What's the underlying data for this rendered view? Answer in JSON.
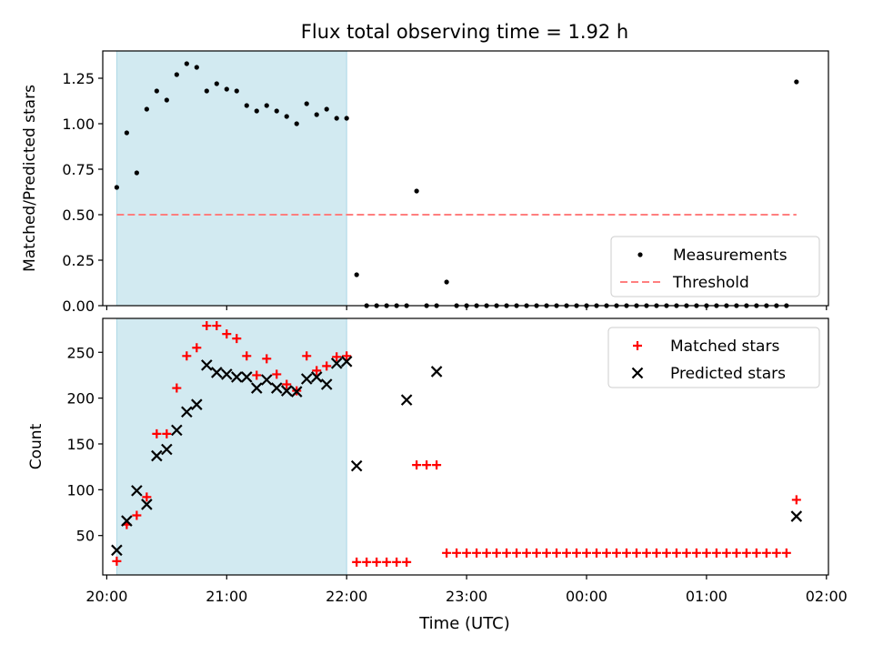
{
  "title": "Flux total observing time = 1.92 h",
  "xlabel": "Time (UTC)",
  "x_ticks": [
    "20:00",
    "21:00",
    "22:00",
    "23:00",
    "00:00",
    "01:00",
    "02:00"
  ],
  "colors": {
    "shade": "#add8e6",
    "threshold": "#ff7f7f",
    "matched": "#ff0000",
    "predicted": "#000000",
    "measurements": "#000000"
  },
  "chart_data": [
    {
      "type": "scatter",
      "ylabel": "Matched/Predicted stars",
      "xlim": [
        "19:58",
        "02:01"
      ],
      "ylim": [
        0,
        1.4
      ],
      "y_ticks": [
        "0.00",
        "0.25",
        "0.50",
        "0.75",
        "1.00",
        "1.25"
      ],
      "shaded_interval": [
        "20:05",
        "22:00"
      ],
      "legend": {
        "position": "lower-right",
        "entries": [
          "Measurements",
          "Threshold"
        ]
      },
      "series": [
        {
          "name": "Measurements",
          "marker": "dot",
          "x": [
            "20:05",
            "20:10",
            "20:15",
            "20:20",
            "20:25",
            "20:30",
            "20:35",
            "20:40",
            "20:45",
            "20:50",
            "20:55",
            "21:00",
            "21:05",
            "21:10",
            "21:15",
            "21:20",
            "21:25",
            "21:30",
            "21:35",
            "21:40",
            "21:45",
            "21:50",
            "21:55",
            "22:00",
            "22:05",
            "22:10",
            "22:15",
            "22:20",
            "22:25",
            "22:30",
            "22:35",
            "22:40",
            "22:45",
            "22:50",
            "22:55",
            "23:00",
            "23:05",
            "23:10",
            "23:15",
            "23:20",
            "23:25",
            "23:30",
            "23:35",
            "23:40",
            "23:45",
            "23:50",
            "23:55",
            "00:00",
            "00:05",
            "00:10",
            "00:15",
            "00:20",
            "00:25",
            "00:30",
            "00:35",
            "00:40",
            "00:45",
            "00:50",
            "00:55",
            "01:00",
            "01:05",
            "01:10",
            "01:15",
            "01:20",
            "01:25",
            "01:30",
            "01:35",
            "01:40",
            "01:45"
          ],
          "y": [
            0.65,
            0.95,
            0.73,
            1.08,
            1.18,
            1.13,
            1.27,
            1.33,
            1.31,
            1.18,
            1.22,
            1.19,
            1.18,
            1.1,
            1.07,
            1.1,
            1.07,
            1.04,
            1.0,
            1.11,
            1.05,
            1.08,
            1.03,
            1.03,
            0.17,
            0,
            0,
            0,
            0,
            0,
            0.63,
            0,
            0,
            0.13,
            0,
            0,
            0,
            0,
            0,
            0,
            0,
            0,
            0,
            0,
            0,
            0,
            0,
            0,
            0,
            0,
            0,
            0,
            0,
            0,
            0,
            0,
            0,
            0,
            0,
            0,
            0,
            0,
            0,
            0,
            0,
            0,
            0,
            0,
            1.23
          ]
        },
        {
          "name": "Threshold",
          "style": "dashed",
          "x": [
            "20:05",
            "01:45"
          ],
          "y": [
            0.5,
            0.5
          ]
        }
      ]
    },
    {
      "type": "scatter",
      "ylabel": "Count",
      "xlim": [
        "19:58",
        "02:01"
      ],
      "ylim": [
        7,
        287
      ],
      "y_ticks": [
        "50",
        "100",
        "150",
        "200",
        "250"
      ],
      "shaded_interval": [
        "20:05",
        "22:00"
      ],
      "legend": {
        "position": "top-right",
        "entries": [
          "Matched stars",
          "Predicted stars"
        ]
      },
      "series": [
        {
          "name": "Matched stars",
          "marker": "plus",
          "x": [
            "20:05",
            "20:10",
            "20:15",
            "20:20",
            "20:25",
            "20:30",
            "20:35",
            "20:40",
            "20:45",
            "20:50",
            "20:55",
            "21:00",
            "21:05",
            "21:10",
            "21:15",
            "21:20",
            "21:25",
            "21:30",
            "21:35",
            "21:40",
            "21:45",
            "21:50",
            "21:55",
            "22:00",
            "22:05",
            "22:10",
            "22:15",
            "22:20",
            "22:25",
            "22:30",
            "22:35",
            "22:40",
            "22:45",
            "22:50",
            "22:55",
            "23:00",
            "23:05",
            "23:10",
            "23:15",
            "23:20",
            "23:25",
            "23:30",
            "23:35",
            "23:40",
            "23:45",
            "23:50",
            "23:55",
            "00:00",
            "00:05",
            "00:10",
            "00:15",
            "00:20",
            "00:25",
            "00:30",
            "00:35",
            "00:40",
            "00:45",
            "00:50",
            "00:55",
            "01:00",
            "01:05",
            "01:10",
            "01:15",
            "01:20",
            "01:25",
            "01:30",
            "01:35",
            "01:40",
            "01:45"
          ],
          "y": [
            22,
            62,
            72,
            92,
            161,
            161,
            211,
            246,
            255,
            279,
            279,
            270,
            265,
            246,
            225,
            243,
            226,
            215,
            208,
            246,
            230,
            235,
            245,
            246,
            21,
            21,
            21,
            21,
            21,
            21,
            127,
            127,
            127,
            31,
            31,
            31,
            31,
            31,
            31,
            31,
            31,
            31,
            31,
            31,
            31,
            31,
            31,
            31,
            31,
            31,
            31,
            31,
            31,
            31,
            31,
            31,
            31,
            31,
            31,
            31,
            31,
            31,
            31,
            31,
            31,
            31,
            31,
            31,
            89
          ]
        },
        {
          "name": "Predicted stars",
          "marker": "x",
          "x": [
            "20:05",
            "20:10",
            "20:15",
            "20:20",
            "20:25",
            "20:30",
            "20:35",
            "20:40",
            "20:45",
            "20:50",
            "20:55",
            "21:00",
            "21:05",
            "21:10",
            "21:15",
            "21:20",
            "21:25",
            "21:30",
            "21:35",
            "21:40",
            "21:45",
            "21:50",
            "21:55",
            "22:00",
            "22:05",
            "22:30",
            "22:45",
            "01:45"
          ],
          "y": [
            34,
            66,
            99,
            84,
            137,
            144,
            165,
            185,
            193,
            236,
            228,
            226,
            223,
            223,
            211,
            220,
            211,
            208,
            207,
            221,
            223,
            215,
            238,
            240,
            126,
            198,
            229,
            71
          ]
        }
      ]
    }
  ]
}
